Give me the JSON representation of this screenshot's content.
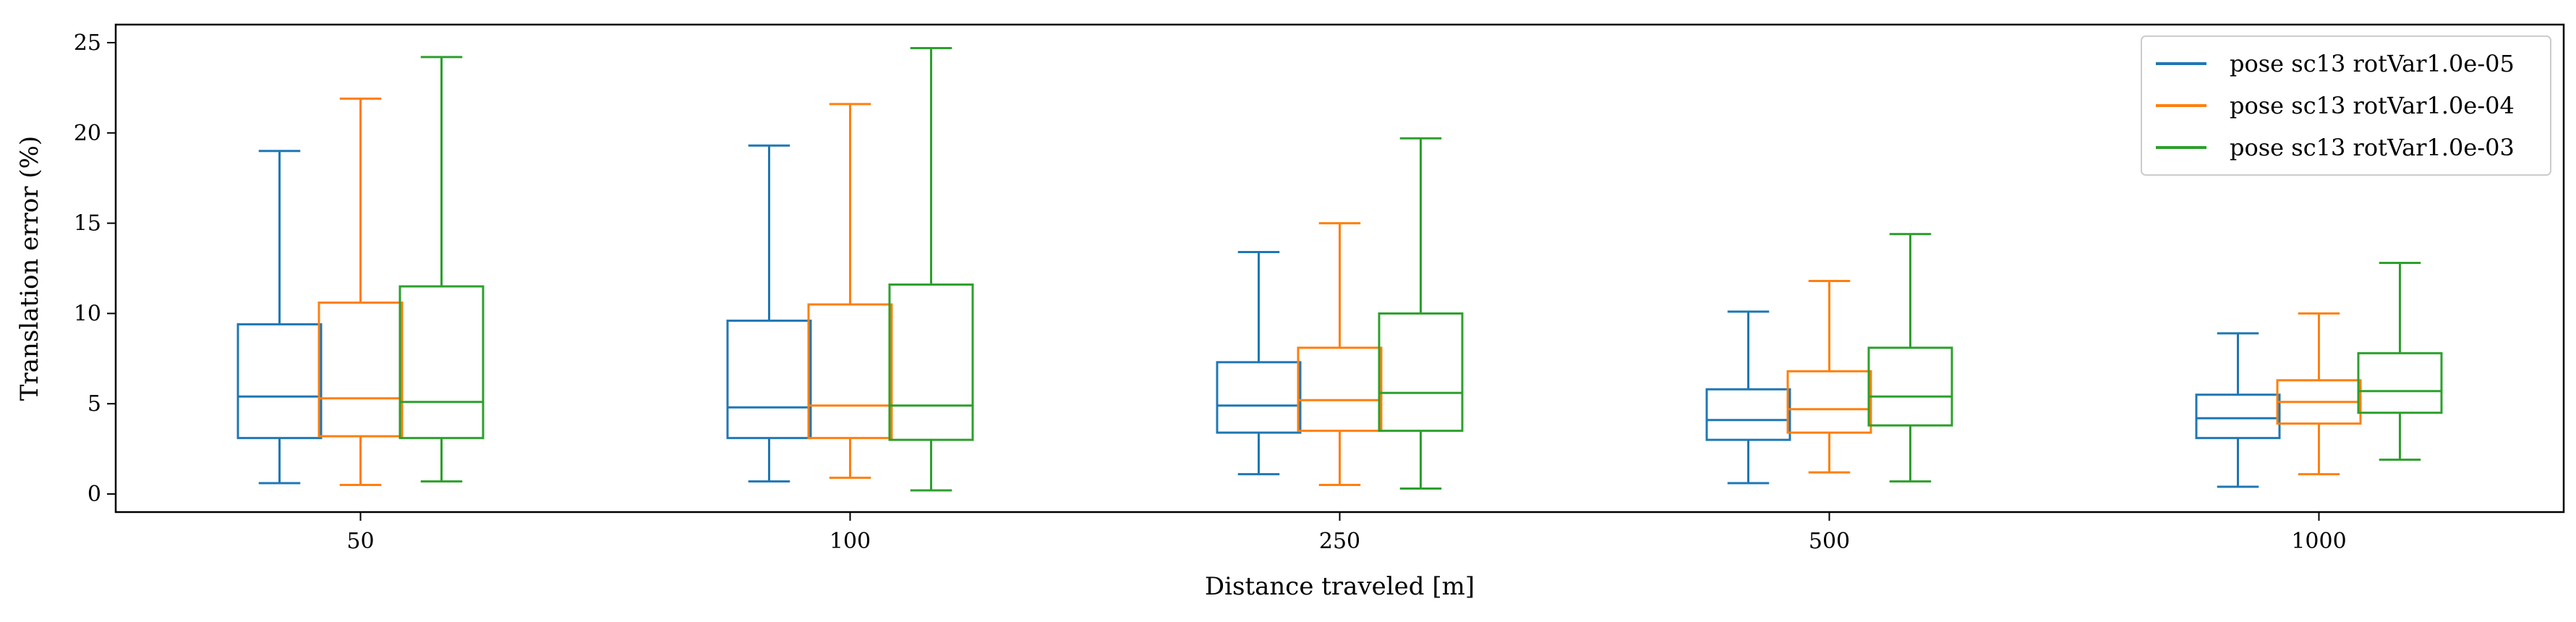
{
  "chart_data": {
    "type": "box",
    "title": "",
    "xlabel": "Distance traveled [m]",
    "ylabel": "Translation error (%)",
    "categories": [
      "50",
      "100",
      "250",
      "500",
      "1000"
    ],
    "ylim": [
      -1,
      26
    ],
    "yticks": [
      0,
      5,
      10,
      15,
      20,
      25
    ],
    "grid": false,
    "legend_position": "top-right",
    "series": [
      {
        "name": "pose sc13 rotVar1.0e-05",
        "color": "#1f77b4",
        "boxes": [
          {
            "whisker_low": 0.6,
            "q1": 3.1,
            "median": 5.4,
            "q3": 9.4,
            "whisker_high": 19.0
          },
          {
            "whisker_low": 0.7,
            "q1": 3.1,
            "median": 4.8,
            "q3": 9.6,
            "whisker_high": 19.3
          },
          {
            "whisker_low": 1.1,
            "q1": 3.4,
            "median": 4.9,
            "q3": 7.3,
            "whisker_high": 13.4
          },
          {
            "whisker_low": 0.6,
            "q1": 3.0,
            "median": 4.1,
            "q3": 5.8,
            "whisker_high": 10.1
          },
          {
            "whisker_low": 0.4,
            "q1": 3.1,
            "median": 4.2,
            "q3": 5.5,
            "whisker_high": 8.9
          }
        ]
      },
      {
        "name": "pose sc13 rotVar1.0e-04",
        "color": "#ff7f0e",
        "boxes": [
          {
            "whisker_low": 0.5,
            "q1": 3.2,
            "median": 5.3,
            "q3": 10.6,
            "whisker_high": 21.9
          },
          {
            "whisker_low": 0.9,
            "q1": 3.1,
            "median": 4.9,
            "q3": 10.5,
            "whisker_high": 21.6
          },
          {
            "whisker_low": 0.5,
            "q1": 3.5,
            "median": 5.2,
            "q3": 8.1,
            "whisker_high": 15.0
          },
          {
            "whisker_low": 1.2,
            "q1": 3.4,
            "median": 4.7,
            "q3": 6.8,
            "whisker_high": 11.8
          },
          {
            "whisker_low": 1.1,
            "q1": 3.9,
            "median": 5.1,
            "q3": 6.3,
            "whisker_high": 10.0
          }
        ]
      },
      {
        "name": "pose sc13 rotVar1.0e-03",
        "color": "#2ca02c",
        "boxes": [
          {
            "whisker_low": 0.7,
            "q1": 3.1,
            "median": 5.1,
            "q3": 11.5,
            "whisker_high": 24.2
          },
          {
            "whisker_low": 0.2,
            "q1": 3.0,
            "median": 4.9,
            "q3": 11.6,
            "whisker_high": 24.7
          },
          {
            "whisker_low": 0.3,
            "q1": 3.5,
            "median": 5.6,
            "q3": 10.0,
            "whisker_high": 19.7
          },
          {
            "whisker_low": 0.7,
            "q1": 3.8,
            "median": 5.4,
            "q3": 8.1,
            "whisker_high": 14.4
          },
          {
            "whisker_low": 1.9,
            "q1": 4.5,
            "median": 5.7,
            "q3": 7.8,
            "whisker_high": 12.8
          }
        ]
      }
    ]
  }
}
